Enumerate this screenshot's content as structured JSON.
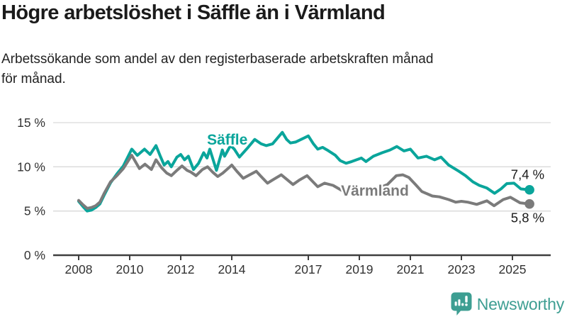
{
  "header": {
    "title": "Högre arbetslöshet i Säffle än i Värmland",
    "subtitle_line1": "Arbetssökande som andel av den registerbaserade arbetskraften månad",
    "subtitle_line2": "för månad."
  },
  "colors": {
    "saffle_line": "#0aa59b",
    "varmland_line": "#7b7b7b",
    "gridline": "#d9d9d9",
    "axis": "#3e3e3e",
    "axis_text": "#333333",
    "value_label_text": "#1a1a1a",
    "logo_teal": "#3d9e92"
  },
  "chart_data": {
    "type": "line",
    "unit": "%",
    "xlim": [
      2007,
      2026.5
    ],
    "ylim": [
      0,
      15
    ],
    "grid": "horizontal-only",
    "gridline_values": [
      5,
      10,
      15
    ],
    "y_ticks": [
      0,
      5,
      10,
      15
    ],
    "y_tick_labels": [
      "0 %",
      "5 %",
      "10 %",
      "15 %"
    ],
    "x_ticks": [
      2008,
      2010,
      2012,
      2014,
      2017,
      2019,
      2021,
      2023,
      2025
    ],
    "x_tick_labels": [
      "2008",
      "2010",
      "2012",
      "2014",
      "2017",
      "2019",
      "2021",
      "2023",
      "2025"
    ],
    "legend_position": "inline-labels-on-lines",
    "series": [
      {
        "name": "Säffle",
        "color": "#0aa59b",
        "end_label": "7,4 %",
        "end_label_side": "above",
        "inline_label": {
          "year": 2013.03,
          "value": 12.5
        },
        "points": [
          [
            2008.0,
            6.1
          ],
          [
            2008.17,
            5.5
          ],
          [
            2008.33,
            5.0
          ],
          [
            2008.5,
            5.1
          ],
          [
            2008.67,
            5.4
          ],
          [
            2008.83,
            5.8
          ],
          [
            2009.0,
            6.8
          ],
          [
            2009.25,
            8.2
          ],
          [
            2009.5,
            9.2
          ],
          [
            2009.75,
            10.1
          ],
          [
            2010.08,
            12.0
          ],
          [
            2010.3,
            11.3
          ],
          [
            2010.58,
            12.0
          ],
          [
            2010.8,
            11.4
          ],
          [
            2011.03,
            12.4
          ],
          [
            2011.2,
            11.2
          ],
          [
            2011.35,
            10.2
          ],
          [
            2011.5,
            10.6
          ],
          [
            2011.63,
            10.0
          ],
          [
            2011.85,
            11.1
          ],
          [
            2012.0,
            11.4
          ],
          [
            2012.15,
            10.8
          ],
          [
            2012.3,
            11.2
          ],
          [
            2012.5,
            9.7
          ],
          [
            2012.7,
            10.4
          ],
          [
            2012.9,
            11.6
          ],
          [
            2013.03,
            11.0
          ],
          [
            2013.14,
            12.0
          ],
          [
            2013.4,
            9.6
          ],
          [
            2013.63,
            11.9
          ],
          [
            2013.72,
            11.2
          ],
          [
            2013.95,
            12.4
          ],
          [
            2014.1,
            12.0
          ],
          [
            2014.3,
            11.1
          ],
          [
            2014.64,
            12.2
          ],
          [
            2014.9,
            13.1
          ],
          [
            2015.15,
            12.6
          ],
          [
            2015.35,
            12.4
          ],
          [
            2015.6,
            12.6
          ],
          [
            2015.98,
            13.9
          ],
          [
            2016.15,
            13.1
          ],
          [
            2016.3,
            12.7
          ],
          [
            2016.5,
            12.8
          ],
          [
            2016.86,
            13.3
          ],
          [
            2017.0,
            13.5
          ],
          [
            2017.2,
            12.6
          ],
          [
            2017.37,
            12.0
          ],
          [
            2017.56,
            12.2
          ],
          [
            2017.74,
            11.9
          ],
          [
            2018.06,
            11.3
          ],
          [
            2018.25,
            10.7
          ],
          [
            2018.48,
            10.4
          ],
          [
            2018.7,
            10.6
          ],
          [
            2019.08,
            11.0
          ],
          [
            2019.26,
            10.6
          ],
          [
            2019.55,
            11.2
          ],
          [
            2019.9,
            11.6
          ],
          [
            2020.2,
            11.9
          ],
          [
            2020.47,
            12.3
          ],
          [
            2020.75,
            11.8
          ],
          [
            2021.0,
            12.0
          ],
          [
            2021.3,
            11.0
          ],
          [
            2021.63,
            11.2
          ],
          [
            2021.95,
            10.8
          ],
          [
            2022.2,
            11.1
          ],
          [
            2022.5,
            10.2
          ],
          [
            2022.9,
            9.5
          ],
          [
            2023.16,
            9.0
          ],
          [
            2023.45,
            8.3
          ],
          [
            2023.7,
            7.9
          ],
          [
            2024.0,
            7.6
          ],
          [
            2024.3,
            7.0
          ],
          [
            2024.55,
            7.5
          ],
          [
            2024.78,
            8.1
          ],
          [
            2025.06,
            8.15
          ],
          [
            2025.33,
            7.5
          ],
          [
            2025.67,
            7.4
          ]
        ]
      },
      {
        "name": "Värmland",
        "color": "#7b7b7b",
        "end_label": "5,8 %",
        "end_label_side": "below",
        "inline_label": {
          "year": 2018.28,
          "value": 6.75
        },
        "points": [
          [
            2008.0,
            6.2
          ],
          [
            2008.17,
            5.7
          ],
          [
            2008.33,
            5.3
          ],
          [
            2008.5,
            5.4
          ],
          [
            2008.67,
            5.6
          ],
          [
            2008.83,
            6.0
          ],
          [
            2009.0,
            7.0
          ],
          [
            2009.25,
            8.3
          ],
          [
            2009.5,
            9.0
          ],
          [
            2009.75,
            9.8
          ],
          [
            2010.08,
            11.3
          ],
          [
            2010.38,
            9.8
          ],
          [
            2010.6,
            10.3
          ],
          [
            2010.85,
            9.7
          ],
          [
            2011.03,
            10.8
          ],
          [
            2011.25,
            9.9
          ],
          [
            2011.45,
            9.3
          ],
          [
            2011.63,
            9.0
          ],
          [
            2011.85,
            9.6
          ],
          [
            2012.05,
            10.1
          ],
          [
            2012.25,
            9.6
          ],
          [
            2012.4,
            9.4
          ],
          [
            2012.6,
            9.0
          ],
          [
            2012.85,
            9.7
          ],
          [
            2013.05,
            10.0
          ],
          [
            2013.25,
            9.4
          ],
          [
            2013.45,
            8.9
          ],
          [
            2013.65,
            9.3
          ],
          [
            2013.85,
            9.8
          ],
          [
            2014.0,
            10.2
          ],
          [
            2014.2,
            9.5
          ],
          [
            2014.45,
            8.7
          ],
          [
            2014.7,
            9.1
          ],
          [
            2014.96,
            9.5
          ],
          [
            2015.15,
            8.9
          ],
          [
            2015.4,
            8.15
          ],
          [
            2015.65,
            8.6
          ],
          [
            2015.94,
            9.1
          ],
          [
            2016.15,
            8.6
          ],
          [
            2016.4,
            8.0
          ],
          [
            2016.65,
            8.5
          ],
          [
            2016.95,
            9.0
          ],
          [
            2017.15,
            8.4
          ],
          [
            2017.37,
            7.75
          ],
          [
            2017.64,
            8.15
          ],
          [
            2017.97,
            7.9
          ],
          [
            2018.3,
            7.35
          ],
          [
            2018.6,
            7.55
          ],
          [
            2018.9,
            7.5
          ],
          [
            2019.2,
            7.45
          ],
          [
            2019.5,
            7.55
          ],
          [
            2019.8,
            7.65
          ],
          [
            2020.1,
            8.0
          ],
          [
            2020.45,
            9.0
          ],
          [
            2020.7,
            9.1
          ],
          [
            2020.94,
            8.8
          ],
          [
            2021.2,
            8.0
          ],
          [
            2021.45,
            7.2
          ],
          [
            2021.86,
            6.7
          ],
          [
            2022.14,
            6.6
          ],
          [
            2022.5,
            6.3
          ],
          [
            2022.78,
            6.0
          ],
          [
            2023.0,
            6.1
          ],
          [
            2023.25,
            6.0
          ],
          [
            2023.6,
            5.75
          ],
          [
            2024.0,
            6.15
          ],
          [
            2024.28,
            5.6
          ],
          [
            2024.64,
            6.3
          ],
          [
            2024.92,
            6.55
          ],
          [
            2025.3,
            5.93
          ],
          [
            2025.67,
            5.8
          ]
        ]
      }
    ]
  },
  "logo": {
    "text": "Newsworthy",
    "icon": "bar-chart-speech-bubble-icon"
  }
}
